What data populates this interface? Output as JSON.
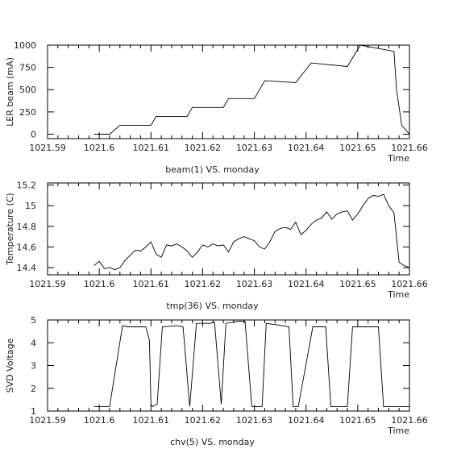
{
  "chart_data": [
    {
      "type": "line",
      "title": "",
      "xlabel": "Time",
      "ylabel": "LER beam (mA)",
      "caption": "beam(1) VS. monday",
      "xlim": [
        1021.59,
        1021.66
      ],
      "ylim": [
        -50,
        1000
      ],
      "x_ticks": [
        "1021.59",
        "1021.6",
        "1021.61",
        "1021.62",
        "1021.63",
        "1021.64",
        "1021.65",
        "1021.66"
      ],
      "y_ticks": [
        "0",
        "250",
        "500",
        "750",
        "1000"
      ],
      "series": [
        {
          "name": "",
          "x": [
            1021.599,
            1021.602,
            1021.604,
            1021.61,
            1021.611,
            1021.617,
            1021.618,
            1021.624,
            1021.625,
            1021.63,
            1021.632,
            1021.638,
            1021.641,
            1021.648,
            1021.6505,
            1021.657,
            1021.6575,
            1021.6585,
            1021.66
          ],
          "y": [
            0,
            0,
            100,
            100,
            200,
            200,
            300,
            300,
            400,
            400,
            600,
            580,
            800,
            760,
            1000,
            930,
            500,
            100,
            0
          ]
        }
      ]
    },
    {
      "type": "line",
      "title": "",
      "xlabel": "Time",
      "ylabel": "Temperature (C)",
      "caption": "tmp(36) VS. monday",
      "xlim": [
        1021.59,
        1021.66
      ],
      "ylim": [
        14.33,
        15.22
      ],
      "x_ticks": [
        "1021.59",
        "1021.6",
        "1021.61",
        "1021.62",
        "1021.63",
        "1021.64",
        "1021.65",
        "1021.66"
      ],
      "y_ticks": [
        "14.4",
        "14.6",
        "14.8",
        "15",
        "15.2"
      ],
      "series": [
        {
          "name": "",
          "x": [
            1021.599,
            1021.6,
            1021.601,
            1021.602,
            1021.603,
            1021.604,
            1021.605,
            1021.606,
            1021.607,
            1021.608,
            1021.609,
            1021.61,
            1021.611,
            1021.612,
            1021.613,
            1021.614,
            1021.615,
            1021.616,
            1021.617,
            1021.618,
            1021.619,
            1021.62,
            1021.621,
            1021.622,
            1021.623,
            1021.624,
            1021.625,
            1021.626,
            1021.627,
            1021.628,
            1021.629,
            1021.63,
            1021.631,
            1021.632,
            1021.633,
            1021.634,
            1021.635,
            1021.636,
            1021.637,
            1021.638,
            1021.639,
            1021.64,
            1021.641,
            1021.642,
            1021.643,
            1021.644,
            1021.645,
            1021.646,
            1021.647,
            1021.648,
            1021.649,
            1021.65,
            1021.651,
            1021.652,
            1021.653,
            1021.654,
            1021.655,
            1021.656,
            1021.657,
            1021.658,
            1021.659,
            1021.66
          ],
          "y": [
            14.42,
            14.46,
            14.39,
            14.4,
            14.38,
            14.4,
            14.47,
            14.52,
            14.57,
            14.56,
            14.6,
            14.65,
            14.53,
            14.5,
            14.62,
            14.61,
            14.63,
            14.6,
            14.56,
            14.5,
            14.55,
            14.62,
            14.6,
            14.63,
            14.61,
            14.62,
            14.55,
            14.65,
            14.68,
            14.7,
            14.68,
            14.66,
            14.6,
            14.58,
            14.65,
            14.75,
            14.78,
            14.79,
            14.77,
            14.84,
            14.72,
            14.76,
            14.82,
            14.86,
            14.88,
            14.94,
            14.87,
            14.92,
            14.94,
            14.95,
            14.86,
            14.92,
            15.0,
            15.07,
            15.1,
            15.09,
            15.11,
            15.0,
            14.93,
            14.45,
            14.42,
            14.4
          ]
        }
      ]
    },
    {
      "type": "line",
      "title": "",
      "xlabel": "Time",
      "ylabel": "SVD Voltage",
      "caption": "chv(5) VS. monday",
      "xlim": [
        1021.59,
        1021.66
      ],
      "ylim": [
        1,
        5
      ],
      "x_ticks": [
        "1021.59",
        "1021.6",
        "1021.61",
        "1021.62",
        "1021.63",
        "1021.64",
        "1021.65",
        "1021.66"
      ],
      "y_ticks": [
        "1",
        "2",
        "3",
        "4",
        "5"
      ],
      "series": [
        {
          "name": "",
          "x": [
            1021.599,
            1021.602,
            1021.6045,
            1021.6055,
            1021.609,
            1021.6097,
            1021.61,
            1021.6103,
            1021.6112,
            1021.6122,
            1021.615,
            1021.6162,
            1021.6175,
            1021.6188,
            1021.6215,
            1021.6223,
            1021.6236,
            1021.6245,
            1021.627,
            1021.6282,
            1021.6295,
            1021.6305,
            1021.6315,
            1021.6323,
            1021.6355,
            1021.6367,
            1021.6375,
            1021.6385,
            1021.6413,
            1021.6425,
            1021.6438,
            1021.6448,
            1021.648,
            1021.649,
            1021.6505,
            1021.6513,
            1021.654,
            1021.655,
            1021.6565,
            1021.66
          ],
          "y": [
            1.2,
            1.2,
            4.75,
            4.7,
            4.7,
            4.1,
            1.3,
            1.2,
            1.3,
            4.7,
            4.75,
            4.7,
            1.2,
            4.85,
            4.85,
            4.9,
            1.3,
            4.85,
            4.95,
            4.95,
            1.2,
            1.2,
            1.2,
            4.85,
            4.75,
            4.7,
            1.2,
            1.2,
            4.7,
            4.7,
            4.7,
            1.2,
            1.2,
            4.7,
            4.7,
            4.7,
            4.7,
            1.2,
            1.2,
            1.2
          ]
        }
      ]
    }
  ]
}
